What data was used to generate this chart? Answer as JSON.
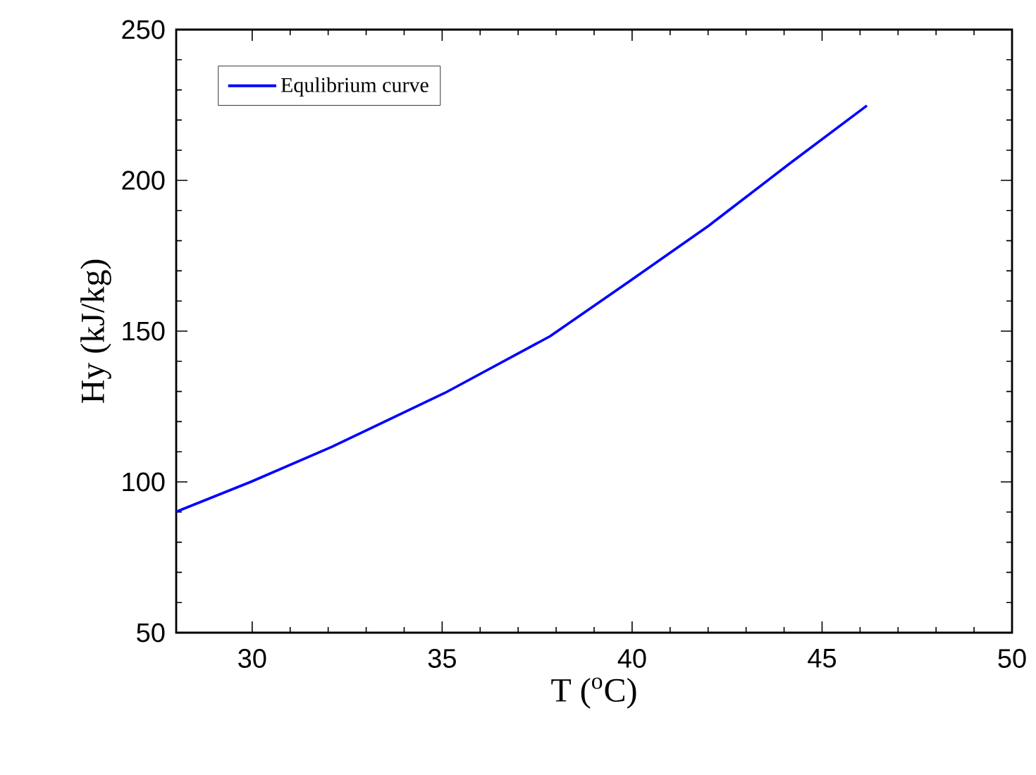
{
  "chart_data": {
    "type": "line",
    "xlabel": "T ($^{o}$C)",
    "ylabel": "Hy (kJ/kg)",
    "x": [
      28,
      29.96,
      32.09,
      35.07,
      37.84,
      39.89,
      42.02,
      44.15,
      46.18
    ],
    "series": [
      {
        "name": "Equlibrium curve",
        "color": "#0000ff",
        "values": [
          90.1,
          100,
          111.6,
          129.5,
          148.3,
          166.2,
          185,
          205.6,
          224.8
        ]
      }
    ],
    "xlim": [
      28,
      50
    ],
    "ylim": [
      50,
      250
    ],
    "xticks": [
      30,
      35,
      40,
      45,
      50
    ],
    "yticks": [
      50,
      100,
      150,
      200,
      250
    ],
    "legend": "top left"
  }
}
